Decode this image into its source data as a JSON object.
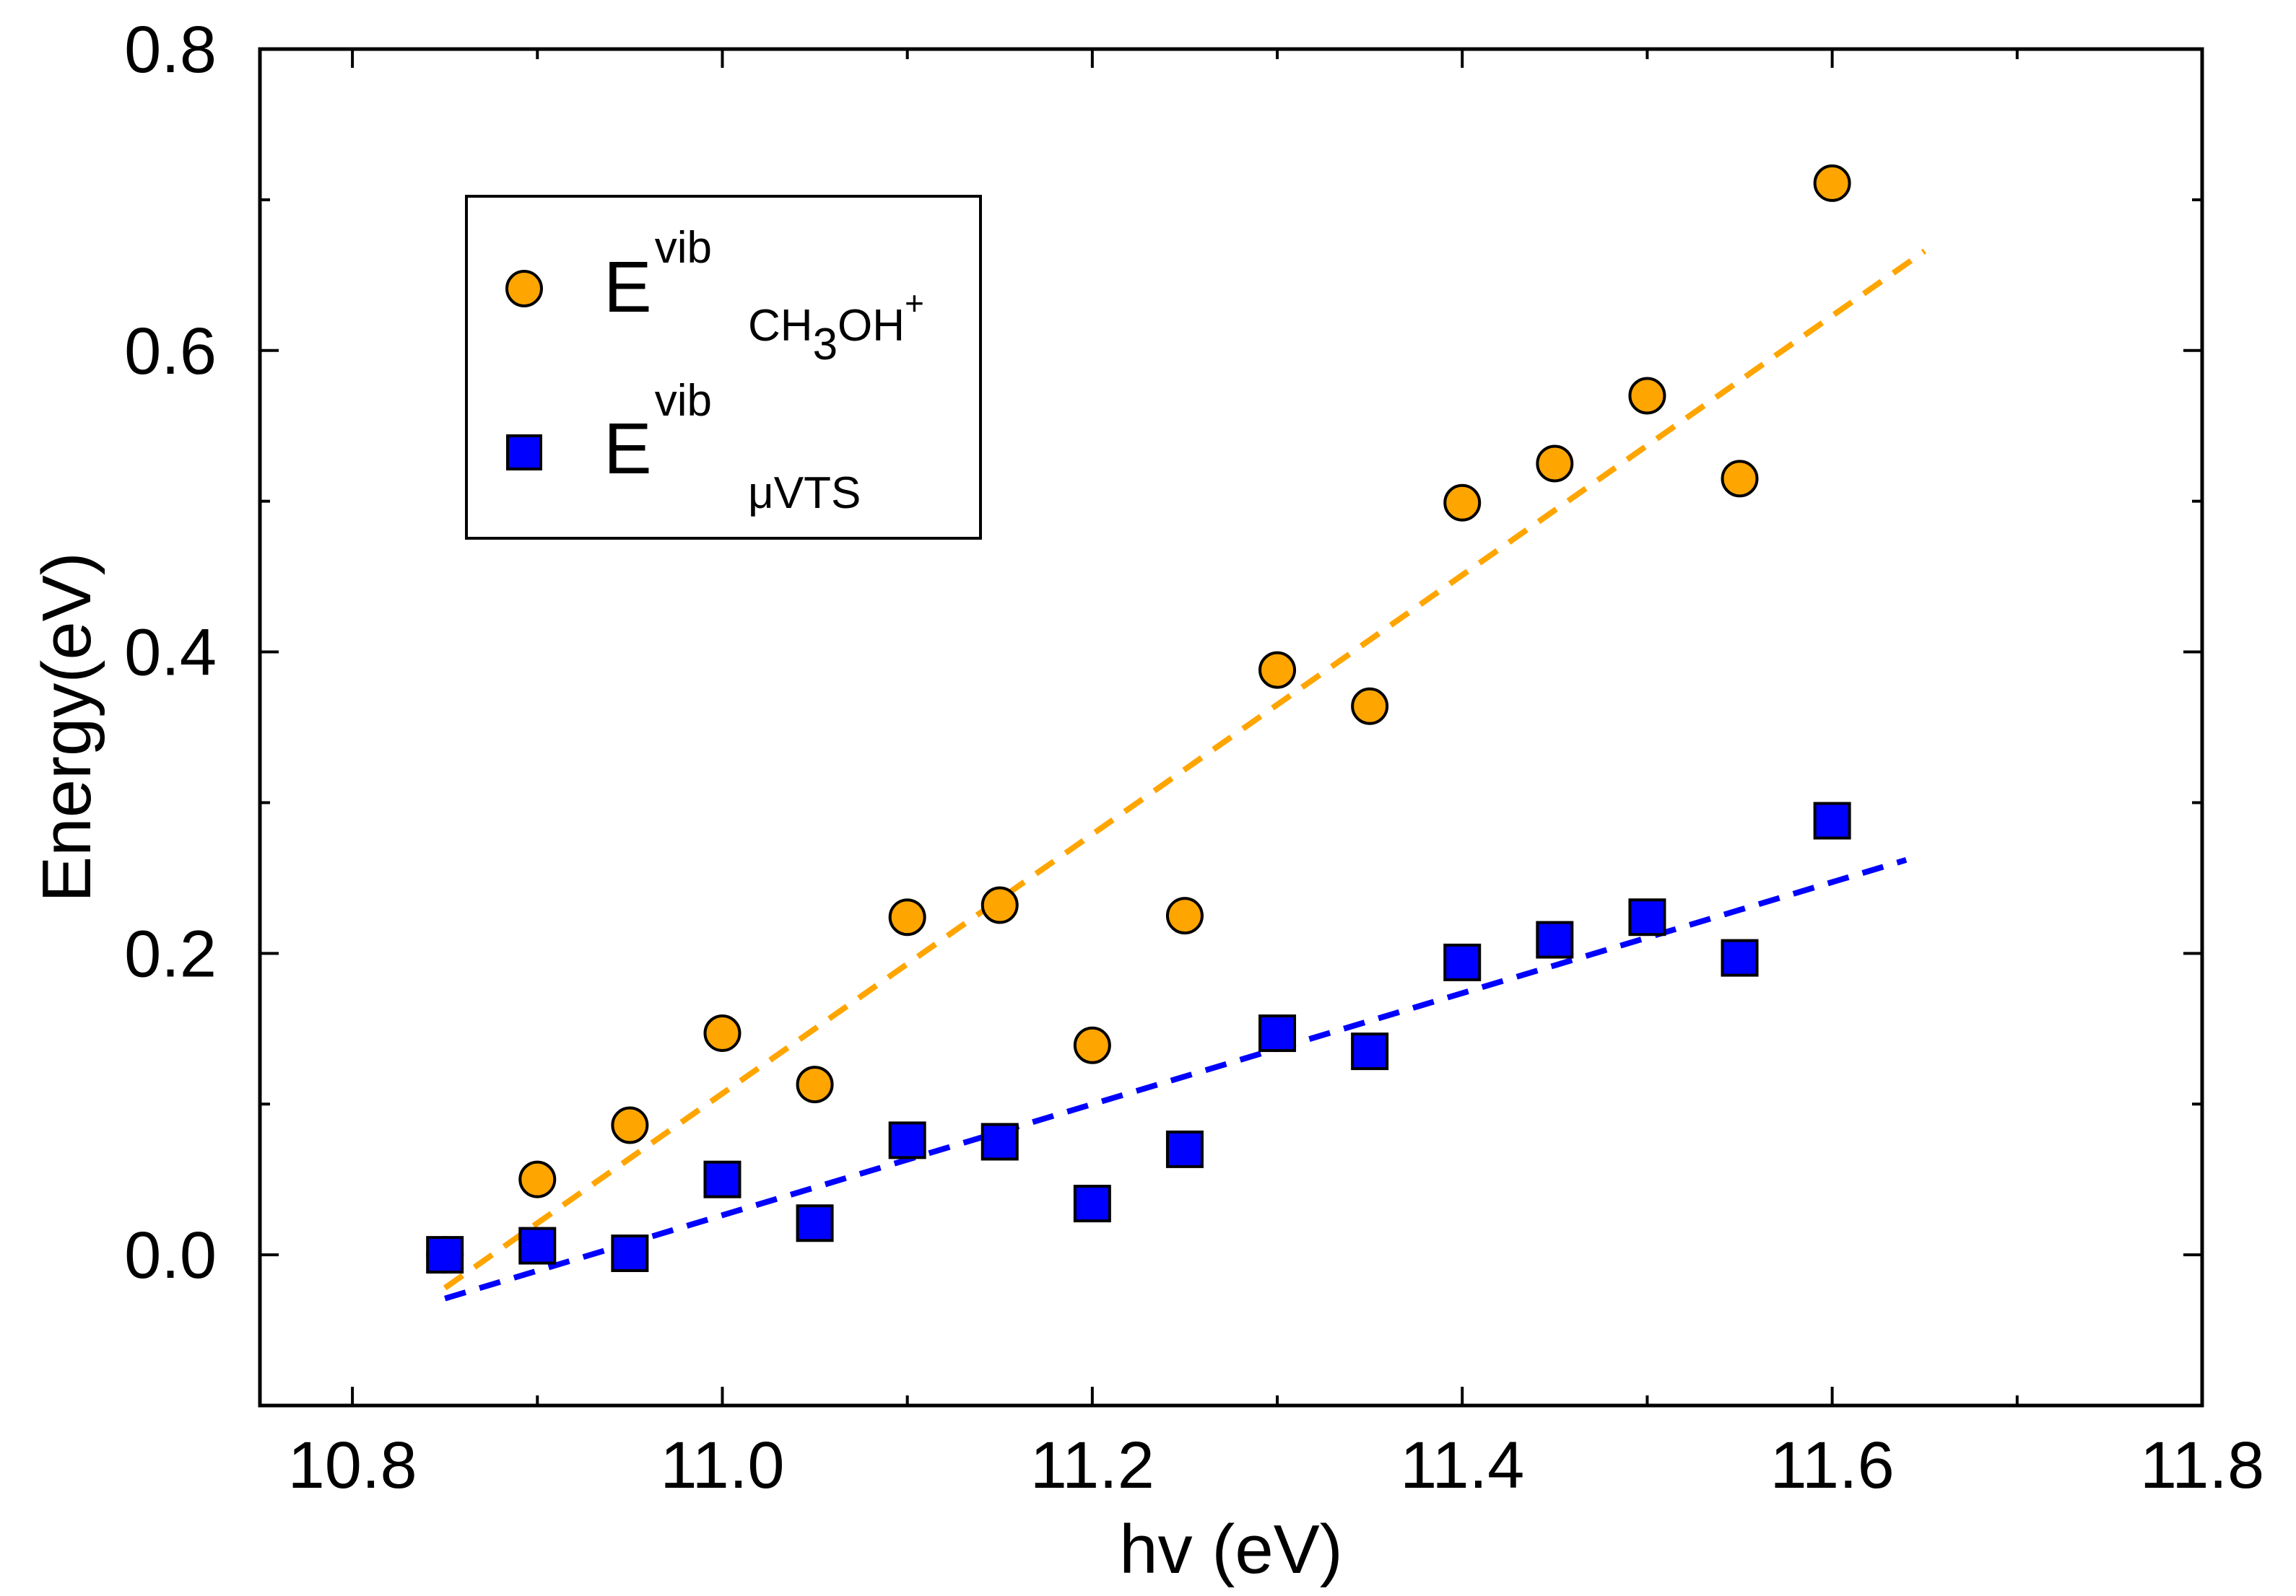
{
  "chart_data": {
    "type": "scatter",
    "title": "",
    "xlabel": "hv (eV)",
    "ylabel": "Energy(eV)",
    "xlim": [
      10.75,
      11.8
    ],
    "ylim": [
      -0.1,
      0.8
    ],
    "xticks": [
      "10.8",
      "11.0",
      "11.2",
      "11.4",
      "11.6",
      "11.8"
    ],
    "yticks": [
      "0.0",
      "0.2",
      "0.4",
      "0.6",
      "0.8"
    ],
    "grid": false,
    "legend_position": "top-left",
    "series": [
      {
        "name": "E vib CH3OH+",
        "legend": {
          "main": "E",
          "sup": "vib",
          "sub_a": "CH",
          "sub_num": "3",
          "sub_b": "OH",
          "sub_sup": "+"
        },
        "marker": "circle",
        "color": "#FFA500",
        "x": [
          10.85,
          10.9,
          10.95,
          11.0,
          11.05,
          11.1,
          11.15,
          11.2,
          11.25,
          11.3,
          11.35,
          11.4,
          11.45,
          11.5,
          11.55,
          11.6
        ],
        "y": [
          0.0,
          0.05,
          0.086,
          0.147,
          0.113,
          0.224,
          0.232,
          0.139,
          0.225,
          0.388,
          0.364,
          0.499,
          0.525,
          0.57,
          0.515,
          0.711
        ],
        "fit": {
          "color": "#FFA500",
          "x": [
            10.85,
            11.65
          ],
          "y": [
            -0.022,
            0.666
          ]
        }
      },
      {
        "name": "E vib μVTS",
        "legend": {
          "main": "E",
          "sup": "vib",
          "sub": "μVTS"
        },
        "marker": "square",
        "color": "#0000FF",
        "x": [
          10.85,
          10.9,
          10.95,
          11.0,
          11.05,
          11.1,
          11.15,
          11.2,
          11.25,
          11.3,
          11.35,
          11.4,
          11.45,
          11.5,
          11.55,
          11.6
        ],
        "y": [
          0.0,
          0.006,
          0.001,
          0.05,
          0.021,
          0.076,
          0.075,
          0.034,
          0.07,
          0.147,
          0.135,
          0.194,
          0.209,
          0.224,
          0.197,
          0.288
        ],
        "fit": {
          "color": "#0000FF",
          "x": [
            10.85,
            11.64
          ],
          "y": [
            -0.029,
            0.262
          ]
        }
      }
    ]
  }
}
